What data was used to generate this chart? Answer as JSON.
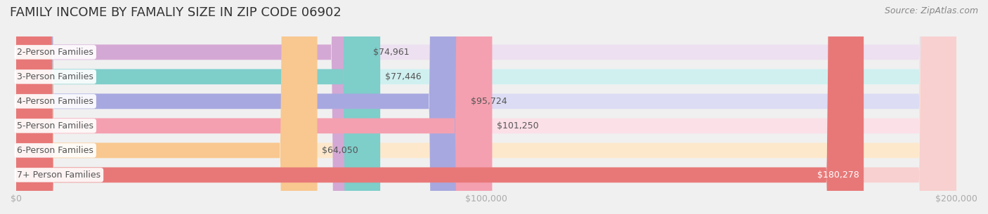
{
  "title": "FAMILY INCOME BY FAMALIY SIZE IN ZIP CODE 06902",
  "source": "Source: ZipAtlas.com",
  "categories": [
    "2-Person Families",
    "3-Person Families",
    "4-Person Families",
    "5-Person Families",
    "6-Person Families",
    "7+ Person Families"
  ],
  "values": [
    74961,
    77446,
    95724,
    101250,
    64050,
    180278
  ],
  "labels": [
    "$74,961",
    "$77,446",
    "$95,724",
    "$101,250",
    "$64,050",
    "$180,278"
  ],
  "bar_colors": [
    "#d4a8d4",
    "#7ececa",
    "#a8a8e0",
    "#f4a0b0",
    "#f8c890",
    "#e87878"
  ],
  "bar_bg_colors": [
    "#ede0f0",
    "#d0f0f0",
    "#dcdcf4",
    "#fce0e8",
    "#fde8cc",
    "#f8d0d0"
  ],
  "xlim": [
    0,
    200000
  ],
  "xticks": [
    0,
    100000,
    200000
  ],
  "xtick_labels": [
    "$0",
    "$100,000",
    "$200,000"
  ],
  "background_color": "#f0f0f0",
  "title_fontsize": 13,
  "label_fontsize": 9,
  "source_fontsize": 9
}
